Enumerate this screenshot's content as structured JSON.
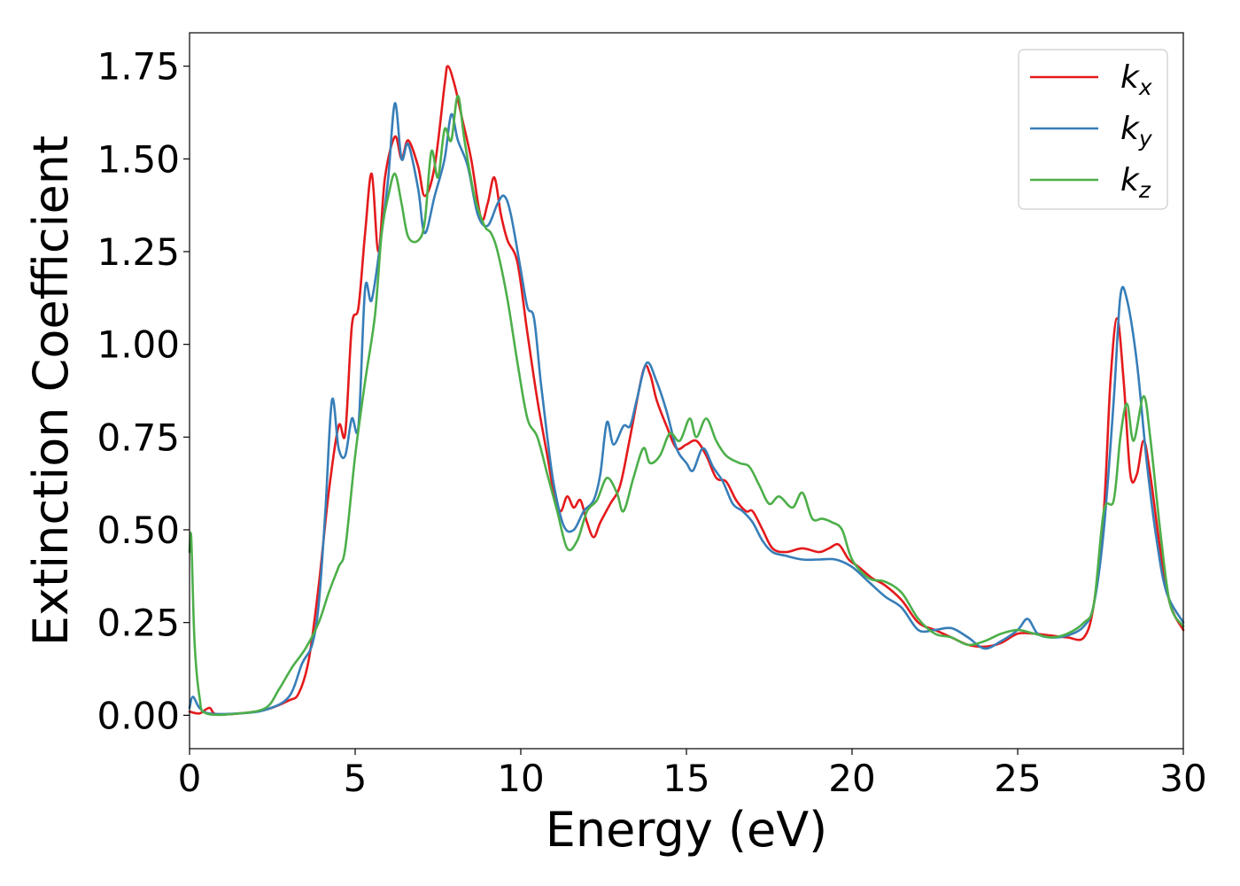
{
  "chart_data": {
    "type": "line",
    "xlabel": "Energy (eV)",
    "ylabel": "Extinction Coefficient",
    "xlim": [
      0,
      30
    ],
    "ylim": [
      -0.09,
      1.84
    ],
    "x_ticks": [
      0,
      5,
      10,
      15,
      20,
      25,
      30
    ],
    "x_tick_labels": [
      "0",
      "5",
      "10",
      "15",
      "20",
      "25",
      "30"
    ],
    "y_ticks": [
      0.0,
      0.25,
      0.5,
      0.75,
      1.0,
      1.25,
      1.5,
      1.75
    ],
    "y_tick_labels": [
      "0.00",
      "0.25",
      "0.50",
      "0.75",
      "1.00",
      "1.25",
      "1.50",
      "1.75"
    ],
    "grid": false,
    "legend_position": "top-right",
    "series": [
      {
        "name": "k",
        "subscript": "x",
        "color": "#e41a1c",
        "points": [
          [
            0,
            0.01
          ],
          [
            0.3,
            0.005
          ],
          [
            0.6,
            0.02
          ],
          [
            0.8,
            0.003
          ],
          [
            1.5,
            0.005
          ],
          [
            2.3,
            0.015
          ],
          [
            3.0,
            0.04
          ],
          [
            3.3,
            0.06
          ],
          [
            3.6,
            0.15
          ],
          [
            3.9,
            0.35
          ],
          [
            4.2,
            0.6
          ],
          [
            4.5,
            0.78
          ],
          [
            4.7,
            0.76
          ],
          [
            4.9,
            1.05
          ],
          [
            5.1,
            1.1
          ],
          [
            5.3,
            1.3
          ],
          [
            5.5,
            1.46
          ],
          [
            5.7,
            1.25
          ],
          [
            5.9,
            1.45
          ],
          [
            6.2,
            1.56
          ],
          [
            6.4,
            1.5
          ],
          [
            6.6,
            1.55
          ],
          [
            6.9,
            1.48
          ],
          [
            7.1,
            1.4
          ],
          [
            7.4,
            1.48
          ],
          [
            7.7,
            1.7
          ],
          [
            7.8,
            1.75
          ],
          [
            8.0,
            1.7
          ],
          [
            8.2,
            1.62
          ],
          [
            8.5,
            1.5
          ],
          [
            8.8,
            1.34
          ],
          [
            9.0,
            1.38
          ],
          [
            9.2,
            1.45
          ],
          [
            9.4,
            1.35
          ],
          [
            9.6,
            1.28
          ],
          [
            9.9,
            1.22
          ],
          [
            10.2,
            1.03
          ],
          [
            10.5,
            0.85
          ],
          [
            10.8,
            0.7
          ],
          [
            11.0,
            0.6
          ],
          [
            11.2,
            0.55
          ],
          [
            11.4,
            0.59
          ],
          [
            11.6,
            0.56
          ],
          [
            11.8,
            0.58
          ],
          [
            12.0,
            0.52
          ],
          [
            12.2,
            0.48
          ],
          [
            12.4,
            0.52
          ],
          [
            12.7,
            0.57
          ],
          [
            13.0,
            0.62
          ],
          [
            13.3,
            0.75
          ],
          [
            13.7,
            0.93
          ],
          [
            13.9,
            0.92
          ],
          [
            14.1,
            0.85
          ],
          [
            14.4,
            0.78
          ],
          [
            14.7,
            0.72
          ],
          [
            15.0,
            0.73
          ],
          [
            15.3,
            0.74
          ],
          [
            15.6,
            0.7
          ],
          [
            15.9,
            0.64
          ],
          [
            16.2,
            0.63
          ],
          [
            16.5,
            0.58
          ],
          [
            16.8,
            0.55
          ],
          [
            17.0,
            0.55
          ],
          [
            17.3,
            0.5
          ],
          [
            17.6,
            0.45
          ],
          [
            18.0,
            0.44
          ],
          [
            18.5,
            0.45
          ],
          [
            19.0,
            0.44
          ],
          [
            19.3,
            0.45
          ],
          [
            19.6,
            0.46
          ],
          [
            19.9,
            0.42
          ],
          [
            20.2,
            0.4
          ],
          [
            20.6,
            0.37
          ],
          [
            21.0,
            0.35
          ],
          [
            21.5,
            0.31
          ],
          [
            22.0,
            0.25
          ],
          [
            22.5,
            0.23
          ],
          [
            23.0,
            0.21
          ],
          [
            23.5,
            0.19
          ],
          [
            24.0,
            0.185
          ],
          [
            24.5,
            0.195
          ],
          [
            25.0,
            0.22
          ],
          [
            25.5,
            0.22
          ],
          [
            26.0,
            0.215
          ],
          [
            26.5,
            0.21
          ],
          [
            27.0,
            0.21
          ],
          [
            27.3,
            0.3
          ],
          [
            27.6,
            0.55
          ],
          [
            27.8,
            0.9
          ],
          [
            28.0,
            1.07
          ],
          [
            28.2,
            0.9
          ],
          [
            28.4,
            0.65
          ],
          [
            28.6,
            0.65
          ],
          [
            28.8,
            0.74
          ],
          [
            29.0,
            0.65
          ],
          [
            29.3,
            0.45
          ],
          [
            29.6,
            0.3
          ],
          [
            30,
            0.23
          ]
        ]
      },
      {
        "name": "k",
        "subscript": "y",
        "color": "#377eb8",
        "points": [
          [
            0,
            0.02
          ],
          [
            0.1,
            0.05
          ],
          [
            0.3,
            0.02
          ],
          [
            0.6,
            0.005
          ],
          [
            1.5,
            0.005
          ],
          [
            2.3,
            0.015
          ],
          [
            3.0,
            0.05
          ],
          [
            3.4,
            0.14
          ],
          [
            3.7,
            0.19
          ],
          [
            3.9,
            0.3
          ],
          [
            4.1,
            0.55
          ],
          [
            4.3,
            0.85
          ],
          [
            4.5,
            0.72
          ],
          [
            4.7,
            0.7
          ],
          [
            4.9,
            0.8
          ],
          [
            5.1,
            0.78
          ],
          [
            5.3,
            1.15
          ],
          [
            5.5,
            1.12
          ],
          [
            5.8,
            1.3
          ],
          [
            6.0,
            1.45
          ],
          [
            6.2,
            1.65
          ],
          [
            6.4,
            1.5
          ],
          [
            6.6,
            1.54
          ],
          [
            6.9,
            1.42
          ],
          [
            7.1,
            1.3
          ],
          [
            7.4,
            1.4
          ],
          [
            7.7,
            1.5
          ],
          [
            7.9,
            1.62
          ],
          [
            8.1,
            1.55
          ],
          [
            8.4,
            1.48
          ],
          [
            8.7,
            1.35
          ],
          [
            9.0,
            1.32
          ],
          [
            9.3,
            1.38
          ],
          [
            9.5,
            1.4
          ],
          [
            9.7,
            1.35
          ],
          [
            10.0,
            1.2
          ],
          [
            10.2,
            1.1
          ],
          [
            10.4,
            1.07
          ],
          [
            10.6,
            0.9
          ],
          [
            10.8,
            0.75
          ],
          [
            11.0,
            0.62
          ],
          [
            11.3,
            0.51
          ],
          [
            11.6,
            0.5
          ],
          [
            11.9,
            0.55
          ],
          [
            12.2,
            0.58
          ],
          [
            12.4,
            0.65
          ],
          [
            12.6,
            0.79
          ],
          [
            12.8,
            0.73
          ],
          [
            13.1,
            0.78
          ],
          [
            13.3,
            0.78
          ],
          [
            13.5,
            0.85
          ],
          [
            13.8,
            0.95
          ],
          [
            14.1,
            0.9
          ],
          [
            14.4,
            0.82
          ],
          [
            14.7,
            0.72
          ],
          [
            15.0,
            0.68
          ],
          [
            15.2,
            0.66
          ],
          [
            15.5,
            0.72
          ],
          [
            15.8,
            0.67
          ],
          [
            16.1,
            0.63
          ],
          [
            16.4,
            0.57
          ],
          [
            16.7,
            0.55
          ],
          [
            17.0,
            0.52
          ],
          [
            17.3,
            0.47
          ],
          [
            17.6,
            0.44
          ],
          [
            18.0,
            0.43
          ],
          [
            18.5,
            0.42
          ],
          [
            19.0,
            0.42
          ],
          [
            19.5,
            0.42
          ],
          [
            20.0,
            0.4
          ],
          [
            20.5,
            0.36
          ],
          [
            21.0,
            0.32
          ],
          [
            21.5,
            0.29
          ],
          [
            22.0,
            0.23
          ],
          [
            22.5,
            0.23
          ],
          [
            23.0,
            0.235
          ],
          [
            23.5,
            0.21
          ],
          [
            24.0,
            0.18
          ],
          [
            24.5,
            0.2
          ],
          [
            25.0,
            0.23
          ],
          [
            25.3,
            0.26
          ],
          [
            25.6,
            0.22
          ],
          [
            26.0,
            0.21
          ],
          [
            26.5,
            0.215
          ],
          [
            27.0,
            0.24
          ],
          [
            27.3,
            0.3
          ],
          [
            27.6,
            0.5
          ],
          [
            27.9,
            0.85
          ],
          [
            28.1,
            1.13
          ],
          [
            28.3,
            1.12
          ],
          [
            28.6,
            0.95
          ],
          [
            28.9,
            0.68
          ],
          [
            29.2,
            0.47
          ],
          [
            29.5,
            0.33
          ],
          [
            30,
            0.25
          ]
        ]
      },
      {
        "name": "k",
        "subscript": "z",
        "color": "#4daf4a",
        "points": [
          [
            0,
            0.44
          ],
          [
            0.05,
            0.48
          ],
          [
            0.15,
            0.2
          ],
          [
            0.3,
            0.05
          ],
          [
            0.5,
            0.005
          ],
          [
            1.5,
            0.005
          ],
          [
            2.3,
            0.02
          ],
          [
            2.7,
            0.07
          ],
          [
            3.1,
            0.13
          ],
          [
            3.5,
            0.18
          ],
          [
            3.9,
            0.25
          ],
          [
            4.2,
            0.33
          ],
          [
            4.5,
            0.4
          ],
          [
            4.7,
            0.45
          ],
          [
            5.0,
            0.7
          ],
          [
            5.3,
            0.9
          ],
          [
            5.6,
            1.08
          ],
          [
            5.8,
            1.3
          ],
          [
            6.0,
            1.4
          ],
          [
            6.2,
            1.46
          ],
          [
            6.4,
            1.38
          ],
          [
            6.6,
            1.29
          ],
          [
            6.9,
            1.28
          ],
          [
            7.1,
            1.33
          ],
          [
            7.3,
            1.52
          ],
          [
            7.5,
            1.45
          ],
          [
            7.7,
            1.58
          ],
          [
            7.9,
            1.55
          ],
          [
            8.1,
            1.67
          ],
          [
            8.3,
            1.55
          ],
          [
            8.6,
            1.4
          ],
          [
            8.9,
            1.32
          ],
          [
            9.1,
            1.3
          ],
          [
            9.3,
            1.25
          ],
          [
            9.6,
            1.12
          ],
          [
            9.9,
            0.95
          ],
          [
            10.2,
            0.8
          ],
          [
            10.5,
            0.75
          ],
          [
            10.8,
            0.65
          ],
          [
            11.1,
            0.55
          ],
          [
            11.4,
            0.45
          ],
          [
            11.7,
            0.47
          ],
          [
            12.0,
            0.55
          ],
          [
            12.3,
            0.58
          ],
          [
            12.6,
            0.64
          ],
          [
            12.9,
            0.6
          ],
          [
            13.1,
            0.55
          ],
          [
            13.4,
            0.64
          ],
          [
            13.7,
            0.72
          ],
          [
            13.9,
            0.68
          ],
          [
            14.2,
            0.7
          ],
          [
            14.5,
            0.76
          ],
          [
            14.8,
            0.74
          ],
          [
            15.1,
            0.8
          ],
          [
            15.3,
            0.75
          ],
          [
            15.6,
            0.8
          ],
          [
            15.9,
            0.74
          ],
          [
            16.2,
            0.7
          ],
          [
            16.6,
            0.68
          ],
          [
            16.9,
            0.67
          ],
          [
            17.2,
            0.62
          ],
          [
            17.5,
            0.57
          ],
          [
            17.8,
            0.59
          ],
          [
            18.2,
            0.56
          ],
          [
            18.5,
            0.6
          ],
          [
            18.8,
            0.53
          ],
          [
            19.1,
            0.53
          ],
          [
            19.4,
            0.52
          ],
          [
            19.7,
            0.5
          ],
          [
            20.0,
            0.42
          ],
          [
            20.5,
            0.37
          ],
          [
            21.0,
            0.36
          ],
          [
            21.5,
            0.33
          ],
          [
            22.0,
            0.26
          ],
          [
            22.5,
            0.22
          ],
          [
            23.0,
            0.21
          ],
          [
            23.5,
            0.19
          ],
          [
            24.0,
            0.2
          ],
          [
            24.5,
            0.22
          ],
          [
            25.0,
            0.23
          ],
          [
            25.5,
            0.22
          ],
          [
            26.0,
            0.21
          ],
          [
            26.5,
            0.22
          ],
          [
            27.0,
            0.25
          ],
          [
            27.3,
            0.3
          ],
          [
            27.6,
            0.55
          ],
          [
            27.9,
            0.58
          ],
          [
            28.1,
            0.75
          ],
          [
            28.3,
            0.84
          ],
          [
            28.5,
            0.74
          ],
          [
            28.8,
            0.86
          ],
          [
            29.0,
            0.75
          ],
          [
            29.3,
            0.5
          ],
          [
            29.6,
            0.3
          ],
          [
            30,
            0.24
          ]
        ]
      }
    ]
  }
}
